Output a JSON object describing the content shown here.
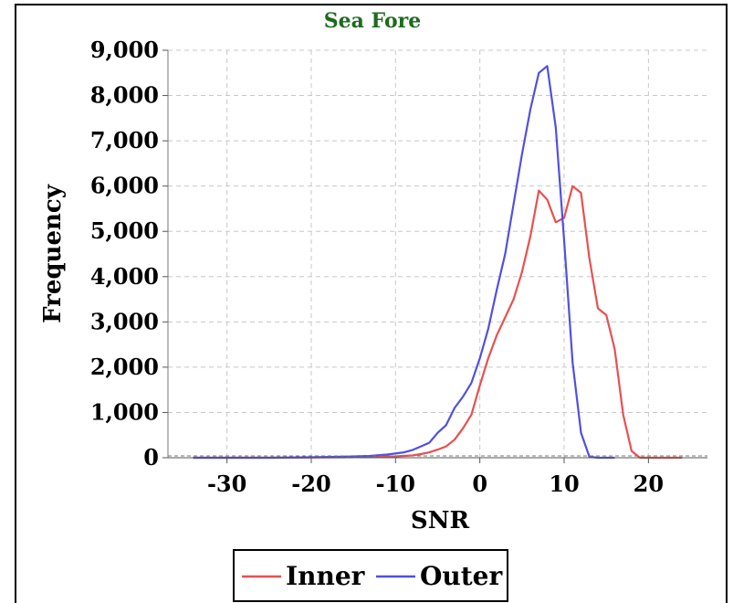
{
  "chart_data": {
    "type": "line",
    "title": "Sea Fore",
    "xlabel": "SNR",
    "ylabel": "Frequency",
    "xlim": [
      -37,
      27
    ],
    "ylim": [
      0,
      9000
    ],
    "xticks": [
      -30,
      -20,
      -10,
      0,
      10,
      20
    ],
    "xtick_labels": [
      "-30",
      "-20",
      "-10",
      "0",
      "10",
      "20"
    ],
    "yticks": [
      0,
      1000,
      2000,
      3000,
      4000,
      5000,
      6000,
      7000,
      8000,
      9000
    ],
    "ytick_labels": [
      "0",
      "1,000",
      "2,000",
      "3,000",
      "4,000",
      "5,000",
      "6,000",
      "7,000",
      "8,000",
      "9,000"
    ],
    "grid": true,
    "legend_position": "bottom-center",
    "series": [
      {
        "name": "Inner",
        "color": "#e85050",
        "points": [
          [
            -34,
            0
          ],
          [
            -30,
            0
          ],
          [
            -25,
            0
          ],
          [
            -20,
            5
          ],
          [
            -16,
            10
          ],
          [
            -14,
            15
          ],
          [
            -12,
            20
          ],
          [
            -10,
            30
          ],
          [
            -8,
            50
          ],
          [
            -7,
            80
          ],
          [
            -6,
            120
          ],
          [
            -5,
            180
          ],
          [
            -4,
            250
          ],
          [
            -3,
            400
          ],
          [
            -2,
            650
          ],
          [
            -1,
            950
          ],
          [
            0,
            1600
          ],
          [
            1,
            2200
          ],
          [
            2,
            2700
          ],
          [
            3,
            3100
          ],
          [
            4,
            3500
          ],
          [
            5,
            4100
          ],
          [
            6,
            4900
          ],
          [
            7,
            5900
          ],
          [
            8,
            5700
          ],
          [
            9,
            5200
          ],
          [
            10,
            5300
          ],
          [
            11,
            6000
          ],
          [
            12,
            5850
          ],
          [
            13,
            4400
          ],
          [
            14,
            3300
          ],
          [
            15,
            3150
          ],
          [
            16,
            2400
          ],
          [
            17,
            950
          ],
          [
            18,
            150
          ],
          [
            19,
            0
          ],
          [
            21,
            0
          ],
          [
            24,
            0
          ]
        ]
      },
      {
        "name": "Outer",
        "color": "#5050e0",
        "points": [
          [
            -34,
            0
          ],
          [
            -30,
            0
          ],
          [
            -25,
            0
          ],
          [
            -20,
            10
          ],
          [
            -17,
            20
          ],
          [
            -15,
            30
          ],
          [
            -13,
            40
          ],
          [
            -11,
            70
          ],
          [
            -9,
            120
          ],
          [
            -8,
            170
          ],
          [
            -6,
            330
          ],
          [
            -5,
            550
          ],
          [
            -4,
            720
          ],
          [
            -3,
            1100
          ],
          [
            -2,
            1350
          ],
          [
            -1,
            1650
          ],
          [
            0,
            2200
          ],
          [
            1,
            2850
          ],
          [
            2,
            3700
          ],
          [
            3,
            4500
          ],
          [
            4,
            5600
          ],
          [
            5,
            6700
          ],
          [
            6,
            7700
          ],
          [
            7,
            8500
          ],
          [
            8,
            8650
          ],
          [
            9,
            7300
          ],
          [
            10,
            4800
          ],
          [
            11,
            2100
          ],
          [
            12,
            550
          ],
          [
            13,
            20
          ],
          [
            14,
            0
          ],
          [
            16,
            0
          ]
        ]
      }
    ]
  }
}
